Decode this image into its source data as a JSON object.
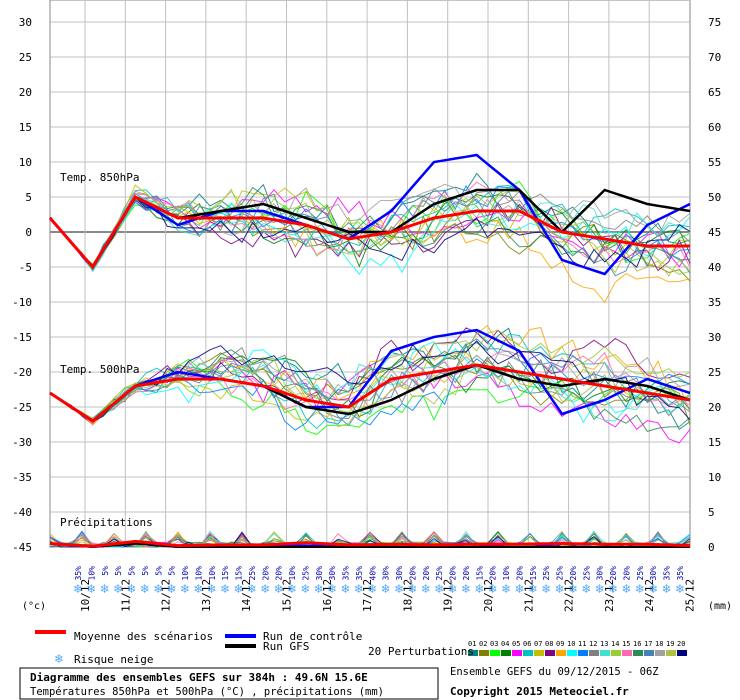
{
  "chart_data": {
    "type": "line",
    "labels": {
      "t850": "Temp. 850hPa",
      "t500": "Temp. 500hPa",
      "precip": "Précipitations",
      "left_unit": "(°c)",
      "right_unit": "(mm)"
    },
    "y_left_ticks": [
      30,
      25,
      20,
      15,
      10,
      5,
      0,
      -5,
      -10,
      -15,
      -20,
      -25,
      -30,
      -35,
      -40,
      -45
    ],
    "y_right_ticks": [
      75,
      70,
      65,
      60,
      55,
      50,
      45,
      40,
      35,
      30,
      25,
      20,
      15,
      10,
      5,
      0
    ],
    "x_dates": [
      "10/12",
      "11/12",
      "12/12",
      "13/12",
      "14/12",
      "15/12",
      "16/12",
      "17/12",
      "18/12",
      "19/12",
      "20/12",
      "21/12",
      "22/12",
      "23/12",
      "24/12",
      "25/12"
    ],
    "snow_risk": [
      "35%",
      "10%",
      "5%",
      "5%",
      "5%",
      "5%",
      "5%",
      "5%",
      "10%",
      "10%",
      "10%",
      "15%",
      "15%",
      "25%",
      "20%",
      "20%",
      "10%",
      "25%",
      "30%",
      "30%",
      "35%",
      "35%",
      "40%",
      "30%",
      "30%",
      "20%",
      "20%",
      "25%",
      "20%",
      "20%",
      "15%",
      "20%",
      "10%",
      "20%",
      "15%",
      "25%",
      "25%",
      "20%",
      "25%",
      "30%",
      "20%",
      "20%",
      "25%",
      "30%",
      "35%",
      "35%"
    ],
    "ylim_left": [
      -45,
      30
    ],
    "series": [
      {
        "name": "Moyenne des scénarios",
        "color": "#ff0000",
        "t850": [
          2,
          -5,
          5,
          2,
          2,
          2,
          1,
          -1,
          0,
          2,
          3,
          3,
          0,
          -1,
          -2,
          -2
        ],
        "t500": [
          -23,
          -27,
          -22,
          -21,
          -21,
          -22,
          -24,
          -25,
          -21,
          -20,
          -19,
          -20,
          -21,
          -22,
          -23,
          -24
        ],
        "precip": [
          0.5,
          0.1,
          0.8,
          0.2,
          0.3,
          0.3,
          0.6,
          0.3,
          0.4,
          0.3,
          0.4,
          0.4,
          0.5,
          0.4,
          0.4,
          0.2
        ]
      },
      {
        "name": "Run de contrôle",
        "color": "#0000ff",
        "t850": [
          2,
          -5,
          5,
          1,
          3,
          3,
          1,
          -1,
          3,
          10,
          11,
          6,
          -4,
          -6,
          1,
          4
        ],
        "t500": [
          -23,
          -27,
          -22,
          -20,
          -21,
          -22,
          -25,
          -25,
          -17,
          -15,
          -14,
          -17,
          -26,
          -24,
          -21,
          -23
        ],
        "precip": [
          0.5,
          0,
          0.5,
          0,
          0,
          0.2,
          0.2,
          0,
          0,
          0,
          0,
          0.5,
          0,
          0,
          0,
          0
        ]
      },
      {
        "name": "Run GFS",
        "color": "#000000",
        "t850": [
          2,
          -5,
          5,
          2,
          3,
          4,
          2,
          0,
          0,
          4,
          6,
          6,
          0,
          6,
          4,
          3
        ],
        "t500": [
          -23,
          -27,
          -22,
          -21,
          -21,
          -22,
          -25,
          -26,
          -24,
          -21,
          -19,
          -21,
          -22,
          -21,
          -22,
          -24
        ],
        "precip": [
          0.5,
          0,
          0.5,
          0,
          0,
          0,
          0,
          0,
          0,
          0,
          0,
          0,
          0,
          0,
          0,
          0
        ]
      }
    ]
  },
  "legend": {
    "mean": "Moyenne des scénarios",
    "control": "Run de contrôle",
    "gfs": "Run GFS",
    "snow": "Risque neige",
    "perturbations_label": "20 Perturbations",
    "perturbation_ids": [
      "01",
      "02",
      "03",
      "04",
      "05",
      "06",
      "07",
      "08",
      "09",
      "10",
      "11",
      "12",
      "13",
      "14",
      "15",
      "16",
      "17",
      "18",
      "19",
      "20"
    ],
    "perturbation_colors": [
      "#008080",
      "#808000",
      "#00ff00",
      "#008000",
      "#ff00ff",
      "#00c0c0",
      "#c0c000",
      "#800080",
      "#ffa500",
      "#00ffff",
      "#0080ff",
      "#808080",
      "#40e0d0",
      "#9acd32",
      "#ff69b4",
      "#2e8b57",
      "#4682b4",
      "#a0a0a0",
      "#b0c040",
      "#000080"
    ]
  },
  "info": {
    "title": "Diagramme des ensembles GEFS sur 384h : 49.6N 15.6E",
    "subtitle": "Températures 850hPa et 500hPa (°C) , précipitations (mm)",
    "ensemble": "Ensemble GEFS du 09/12/2015 - 06Z",
    "copyright": "Copyright 2015 Meteociel.fr"
  }
}
